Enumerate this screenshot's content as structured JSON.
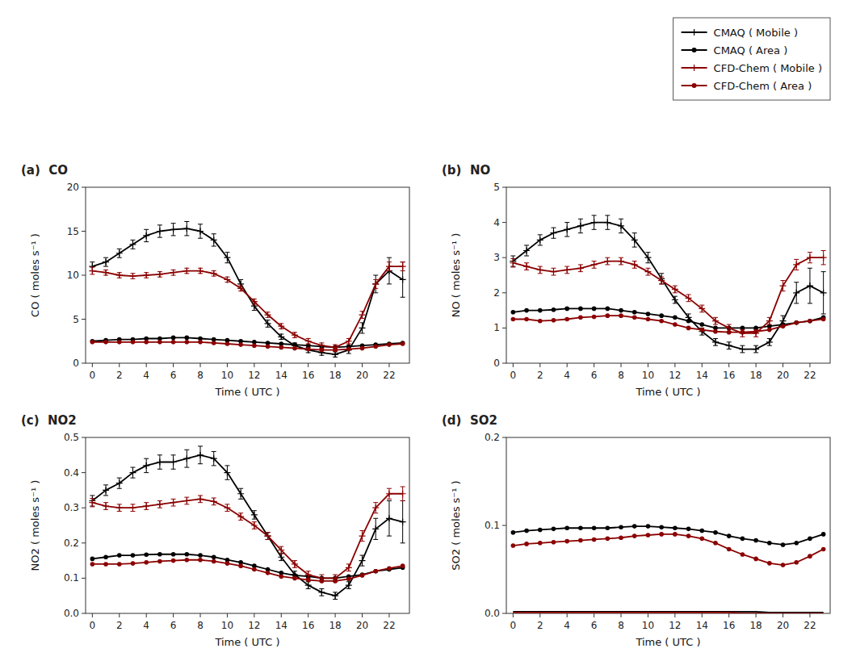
{
  "chart_data": [
    {
      "type": "line",
      "title": "(a)  CO",
      "xlabel": "Time ( UTC )",
      "ylabel": "CO ( moles s⁻¹ )",
      "x": [
        0,
        1,
        2,
        3,
        4,
        5,
        6,
        7,
        8,
        9,
        10,
        11,
        12,
        13,
        14,
        15,
        16,
        17,
        18,
        19,
        20,
        21,
        22,
        23
      ],
      "xlim": [
        -0.5,
        23.5
      ],
      "xticks": [
        0,
        2,
        4,
        6,
        8,
        10,
        12,
        14,
        16,
        18,
        20,
        22
      ],
      "ylim": [
        0,
        20
      ],
      "yticks": [
        0,
        5,
        10,
        15,
        20
      ],
      "grid": false,
      "legend": "upper right",
      "series": [
        {
          "name": "CMAQ ( Mobile )",
          "color": "#000000",
          "marker": "plus",
          "values": [
            11.0,
            11.5,
            12.5,
            13.5,
            14.5,
            15.0,
            15.2,
            15.3,
            15.0,
            14.0,
            12.0,
            9.0,
            6.5,
            4.5,
            3.0,
            2.0,
            1.5,
            1.2,
            1.0,
            1.5,
            4.0,
            9.0,
            10.5,
            9.5
          ],
          "errors": [
            0.5,
            0.5,
            0.5,
            0.5,
            0.7,
            0.7,
            0.7,
            0.8,
            0.8,
            0.7,
            0.6,
            0.5,
            0.5,
            0.4,
            0.3,
            0.3,
            0.3,
            0.3,
            0.3,
            0.4,
            0.6,
            1.0,
            1.5,
            2.0
          ]
        },
        {
          "name": "CMAQ ( Area )",
          "color": "#000000",
          "marker": "circle",
          "values": [
            2.5,
            2.6,
            2.7,
            2.7,
            2.8,
            2.8,
            2.9,
            2.9,
            2.8,
            2.7,
            2.6,
            2.5,
            2.4,
            2.3,
            2.2,
            2.1,
            2.0,
            1.9,
            1.8,
            1.9,
            2.0,
            2.1,
            2.2,
            2.3
          ]
        },
        {
          "name": "CFD-Chem ( Mobile )",
          "color": "#8b0000",
          "marker": "plus",
          "values": [
            10.5,
            10.3,
            10.0,
            9.9,
            10.0,
            10.1,
            10.3,
            10.5,
            10.5,
            10.2,
            9.5,
            8.5,
            7.0,
            5.5,
            4.2,
            3.2,
            2.5,
            2.0,
            1.8,
            2.5,
            5.5,
            9.0,
            11.0,
            11.0
          ],
          "errors": [
            0.4,
            0.3,
            0.3,
            0.3,
            0.3,
            0.3,
            0.3,
            0.3,
            0.3,
            0.3,
            0.3,
            0.3,
            0.3,
            0.3,
            0.3,
            0.3,
            0.3,
            0.3,
            0.3,
            0.3,
            0.4,
            0.5,
            0.5,
            0.5
          ]
        },
        {
          "name": "CFD-Chem ( Area )",
          "color": "#8b0000",
          "marker": "circle",
          "values": [
            2.4,
            2.4,
            2.4,
            2.4,
            2.4,
            2.4,
            2.4,
            2.4,
            2.4,
            2.3,
            2.2,
            2.1,
            2.0,
            1.9,
            1.8,
            1.7,
            1.6,
            1.5,
            1.5,
            1.6,
            1.7,
            1.9,
            2.1,
            2.2
          ]
        }
      ]
    },
    {
      "type": "line",
      "title": "(b)  NO",
      "xlabel": "Time ( UTC )",
      "ylabel": "NO ( moles s⁻¹ )",
      "x": [
        0,
        1,
        2,
        3,
        4,
        5,
        6,
        7,
        8,
        9,
        10,
        11,
        12,
        13,
        14,
        15,
        16,
        17,
        18,
        19,
        20,
        21,
        22,
        23
      ],
      "xlim": [
        -0.5,
        23.5
      ],
      "xticks": [
        0,
        2,
        4,
        6,
        8,
        10,
        12,
        14,
        16,
        18,
        20,
        22
      ],
      "ylim": [
        0,
        5
      ],
      "yticks": [
        0,
        1,
        2,
        3,
        4,
        5
      ],
      "grid": false,
      "series": [
        {
          "color": "#000000",
          "marker": "plus",
          "values": [
            2.9,
            3.2,
            3.5,
            3.7,
            3.8,
            3.9,
            4.0,
            4.0,
            3.9,
            3.5,
            3.0,
            2.4,
            1.8,
            1.3,
            0.9,
            0.6,
            0.5,
            0.4,
            0.4,
            0.6,
            1.2,
            2.0,
            2.2,
            2.0
          ],
          "errors": [
            0.15,
            0.15,
            0.15,
            0.15,
            0.2,
            0.2,
            0.2,
            0.2,
            0.2,
            0.2,
            0.15,
            0.15,
            0.1,
            0.1,
            0.1,
            0.1,
            0.1,
            0.1,
            0.1,
            0.1,
            0.15,
            0.3,
            0.5,
            0.6
          ]
        },
        {
          "color": "#000000",
          "marker": "circle",
          "values": [
            1.45,
            1.5,
            1.5,
            1.52,
            1.55,
            1.55,
            1.55,
            1.55,
            1.5,
            1.45,
            1.4,
            1.35,
            1.3,
            1.2,
            1.1,
            1.0,
            1.0,
            1.0,
            1.0,
            1.05,
            1.1,
            1.15,
            1.2,
            1.3
          ]
        },
        {
          "color": "#8b0000",
          "marker": "plus",
          "values": [
            2.85,
            2.75,
            2.65,
            2.6,
            2.65,
            2.7,
            2.8,
            2.9,
            2.9,
            2.8,
            2.6,
            2.35,
            2.1,
            1.85,
            1.55,
            1.2,
            1.0,
            0.85,
            0.85,
            1.2,
            2.2,
            2.8,
            3.0,
            3.0
          ],
          "errors": [
            0.12,
            0.1,
            0.1,
            0.1,
            0.1,
            0.1,
            0.1,
            0.1,
            0.1,
            0.1,
            0.1,
            0.1,
            0.1,
            0.1,
            0.1,
            0.1,
            0.1,
            0.1,
            0.1,
            0.1,
            0.15,
            0.15,
            0.15,
            0.2
          ]
        },
        {
          "color": "#8b0000",
          "marker": "circle",
          "values": [
            1.25,
            1.25,
            1.2,
            1.22,
            1.25,
            1.3,
            1.32,
            1.35,
            1.35,
            1.3,
            1.25,
            1.2,
            1.1,
            1.0,
            0.95,
            0.9,
            0.88,
            0.88,
            0.9,
            0.95,
            1.05,
            1.15,
            1.2,
            1.25
          ]
        }
      ]
    },
    {
      "type": "line",
      "title": "(c)  NO2",
      "xlabel": "Time ( UTC )",
      "ylabel": "NO2 ( moles s⁻¹ )",
      "x": [
        0,
        1,
        2,
        3,
        4,
        5,
        6,
        7,
        8,
        9,
        10,
        11,
        12,
        13,
        14,
        15,
        16,
        17,
        18,
        19,
        20,
        21,
        22,
        23
      ],
      "xlim": [
        -0.5,
        23.5
      ],
      "xticks": [
        0,
        2,
        4,
        6,
        8,
        10,
        12,
        14,
        16,
        18,
        20,
        22
      ],
      "ylim": [
        0,
        0.5
      ],
      "yticks": [
        {
          "value": 0,
          "label": "0.0"
        },
        0.1,
        0.2,
        0.3,
        0.4,
        0.5
      ],
      "grid": false,
      "series": [
        {
          "color": "#000000",
          "marker": "plus",
          "values": [
            0.32,
            0.35,
            0.37,
            0.4,
            0.42,
            0.43,
            0.43,
            0.44,
            0.45,
            0.44,
            0.4,
            0.34,
            0.28,
            0.22,
            0.16,
            0.11,
            0.08,
            0.06,
            0.05,
            0.08,
            0.15,
            0.24,
            0.27,
            0.26
          ],
          "errors": [
            0.015,
            0.015,
            0.015,
            0.015,
            0.02,
            0.02,
            0.02,
            0.025,
            0.025,
            0.02,
            0.02,
            0.015,
            0.012,
            0.01,
            0.01,
            0.01,
            0.01,
            0.01,
            0.01,
            0.01,
            0.015,
            0.03,
            0.05,
            0.06
          ]
        },
        {
          "color": "#000000",
          "marker": "circle",
          "values": [
            0.155,
            0.16,
            0.165,
            0.165,
            0.167,
            0.168,
            0.168,
            0.168,
            0.165,
            0.16,
            0.152,
            0.145,
            0.135,
            0.125,
            0.115,
            0.108,
            0.105,
            0.1,
            0.1,
            0.105,
            0.11,
            0.12,
            0.125,
            0.13
          ]
        },
        {
          "color": "#8b0000",
          "marker": "plus",
          "values": [
            0.315,
            0.305,
            0.3,
            0.3,
            0.305,
            0.31,
            0.315,
            0.32,
            0.325,
            0.318,
            0.3,
            0.275,
            0.25,
            0.22,
            0.18,
            0.14,
            0.11,
            0.1,
            0.1,
            0.13,
            0.22,
            0.3,
            0.34,
            0.34
          ],
          "errors": [
            0.012,
            0.01,
            0.01,
            0.01,
            0.01,
            0.01,
            0.01,
            0.01,
            0.01,
            0.01,
            0.01,
            0.01,
            0.01,
            0.01,
            0.01,
            0.01,
            0.01,
            0.01,
            0.01,
            0.01,
            0.015,
            0.015,
            0.015,
            0.02
          ]
        },
        {
          "color": "#8b0000",
          "marker": "circle",
          "values": [
            0.14,
            0.14,
            0.14,
            0.142,
            0.145,
            0.148,
            0.15,
            0.152,
            0.152,
            0.148,
            0.142,
            0.135,
            0.125,
            0.115,
            0.105,
            0.1,
            0.095,
            0.092,
            0.092,
            0.098,
            0.108,
            0.12,
            0.128,
            0.135
          ]
        }
      ]
    },
    {
      "type": "line",
      "title": "(d)  SO2",
      "xlabel": "Time ( UTC )",
      "ylabel": "SO2 ( moles s⁻¹ )",
      "x": [
        0,
        1,
        2,
        3,
        4,
        5,
        6,
        7,
        8,
        9,
        10,
        11,
        12,
        13,
        14,
        15,
        16,
        17,
        18,
        19,
        20,
        21,
        22,
        23
      ],
      "xlim": [
        -0.5,
        23.5
      ],
      "xticks": [
        0,
        2,
        4,
        6,
        8,
        10,
        12,
        14,
        16,
        18,
        20,
        22
      ],
      "ylim": [
        0,
        0.2
      ],
      "yticks": [
        {
          "value": 0,
          "label": "0.0"
        },
        0.1,
        0.2
      ],
      "grid": false,
      "series": [
        {
          "color": "#000000",
          "marker": "circle",
          "values": [
            0.092,
            0.094,
            0.095,
            0.096,
            0.097,
            0.097,
            0.097,
            0.097,
            0.098,
            0.099,
            0.099,
            0.098,
            0.097,
            0.096,
            0.094,
            0.092,
            0.088,
            0.085,
            0.083,
            0.08,
            0.078,
            0.08,
            0.085,
            0.09
          ]
        },
        {
          "color": "#000000",
          "marker": "none",
          "values": [
            0.002,
            0.002,
            0.002,
            0.002,
            0.002,
            0.002,
            0.002,
            0.002,
            0.002,
            0.002,
            0.002,
            0.002,
            0.002,
            0.002,
            0.002,
            0.002,
            0.002,
            0.002,
            0.002,
            0.001,
            0.001,
            0.001,
            0.001,
            0.001
          ]
        },
        {
          "color": "#8b0000",
          "marker": "circle",
          "values": [
            0.077,
            0.079,
            0.08,
            0.081,
            0.082,
            0.083,
            0.084,
            0.085,
            0.086,
            0.088,
            0.089,
            0.09,
            0.09,
            0.088,
            0.085,
            0.08,
            0.073,
            0.067,
            0.062,
            0.057,
            0.055,
            0.058,
            0.065,
            0.073
          ]
        },
        {
          "color": "#8b0000",
          "marker": "none",
          "values": [
            0.001,
            0.001,
            0.001,
            0.001,
            0.001,
            0.001,
            0.001,
            0.001,
            0.001,
            0.001,
            0.001,
            0.001,
            0.001,
            0.001,
            0.001,
            0.001,
            0.001,
            0.0,
            0.0,
            0.0,
            0.0,
            0.0,
            0.0,
            0.0
          ]
        }
      ]
    }
  ]
}
